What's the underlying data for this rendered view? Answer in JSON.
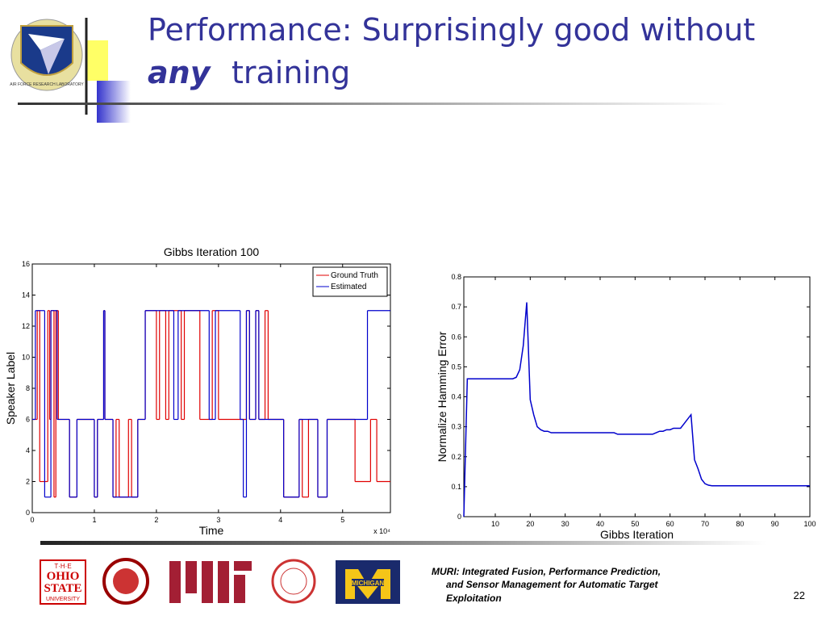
{
  "slide": {
    "title_line1": "Performance: Surprisingly good without",
    "title_emph": "any",
    "title_rest": "training"
  },
  "seal": {
    "text": "AIR FORCE RESEARCH LABORATORY"
  },
  "chart_data": [
    {
      "type": "line",
      "step": true,
      "title": "Gibbs Iteration 100",
      "xlabel": "Time",
      "ylabel": "Speaker Label",
      "x_multiplier": "x 10⁴",
      "xlim": [
        0,
        5.77
      ],
      "xticks": [
        0,
        1,
        2,
        3,
        4,
        5
      ],
      "ylim": [
        0,
        16
      ],
      "yticks": [
        0,
        2,
        4,
        6,
        8,
        10,
        12,
        14,
        16
      ],
      "legend": "upper right",
      "series": [
        {
          "name": "Ground Truth",
          "color": "#e00000",
          "x": [
            0,
            0.08,
            0.12,
            0.25,
            0.28,
            0.3,
            0.35,
            0.38,
            0.42,
            0.6,
            0.72,
            1.0,
            1.05,
            1.15,
            1.17,
            1.3,
            1.35,
            1.4,
            1.55,
            1.6,
            1.7,
            1.82,
            2.0,
            2.05,
            2.15,
            2.2,
            2.4,
            2.45,
            2.7,
            2.9,
            3.0,
            3.45,
            3.5,
            3.6,
            3.65,
            3.75,
            3.8,
            4.05,
            4.3,
            4.35,
            4.45,
            4.6,
            4.75,
            5.2,
            5.45,
            5.55
          ],
          "values": [
            6,
            13,
            2,
            13,
            6,
            13,
            1,
            13,
            6,
            1,
            6,
            1,
            6,
            13,
            6,
            1,
            6,
            1,
            6,
            1,
            6,
            13,
            6,
            13,
            6,
            13,
            6,
            13,
            6,
            13,
            6,
            13,
            6,
            13,
            6,
            13,
            6,
            1,
            6,
            1,
            6,
            1,
            6,
            2,
            6,
            2
          ]
        },
        {
          "name": "Estimated",
          "color": "#0000cc",
          "x": [
            0,
            0.05,
            0.2,
            0.3,
            0.4,
            0.6,
            0.72,
            1.0,
            1.05,
            1.15,
            1.17,
            1.3,
            1.7,
            1.82,
            2.28,
            2.35,
            2.85,
            2.95,
            3.35,
            3.4,
            3.45,
            3.5,
            3.6,
            3.65,
            4.05,
            4.3,
            4.6,
            4.75,
            5.4
          ],
          "values": [
            6,
            13,
            1,
            13,
            6,
            1,
            6,
            1,
            6,
            13,
            6,
            1,
            6,
            13,
            6,
            13,
            6,
            13,
            6,
            1,
            13,
            6,
            13,
            6,
            1,
            6,
            1,
            6,
            13
          ]
        }
      ]
    },
    {
      "type": "line",
      "xlabel": "Gibbs Iteration",
      "ylabel": "Normalize Hamming Error",
      "xlim": [
        1,
        100
      ],
      "xticks": [
        10,
        20,
        30,
        40,
        50,
        60,
        70,
        80,
        90,
        100
      ],
      "ylim": [
        0,
        0.8
      ],
      "yticks": [
        0,
        0.1,
        0.2,
        0.3,
        0.4,
        0.5,
        0.6,
        0.7,
        0.8
      ],
      "x": [
        1,
        2,
        3,
        4,
        5,
        6,
        7,
        8,
        9,
        10,
        11,
        12,
        13,
        14,
        15,
        16,
        17,
        18,
        19,
        20,
        21,
        22,
        23,
        24,
        25,
        26,
        27,
        28,
        29,
        30,
        31,
        32,
        33,
        34,
        35,
        36,
        37,
        38,
        39,
        40,
        41,
        42,
        43,
        44,
        45,
        46,
        47,
        48,
        49,
        50,
        51,
        52,
        53,
        54,
        55,
        56,
        57,
        58,
        59,
        60,
        61,
        62,
        63,
        64,
        65,
        66,
        67,
        68,
        69,
        70,
        71,
        72,
        73,
        74,
        75,
        76,
        77,
        78,
        79,
        80,
        81,
        82,
        83,
        84,
        85,
        86,
        87,
        88,
        89,
        90,
        91,
        92,
        93,
        94,
        95,
        96,
        97,
        98,
        99,
        100
      ],
      "series": [
        {
          "color": "#0000cc",
          "values": [
            0,
            0.46,
            0.46,
            0.46,
            0.46,
            0.46,
            0.46,
            0.46,
            0.46,
            0.46,
            0.46,
            0.46,
            0.46,
            0.46,
            0.46,
            0.465,
            0.49,
            0.57,
            0.715,
            0.39,
            0.34,
            0.3,
            0.29,
            0.285,
            0.285,
            0.28,
            0.28,
            0.28,
            0.28,
            0.28,
            0.28,
            0.28,
            0.28,
            0.28,
            0.28,
            0.28,
            0.28,
            0.28,
            0.28,
            0.28,
            0.28,
            0.28,
            0.28,
            0.28,
            0.275,
            0.275,
            0.275,
            0.275,
            0.275,
            0.275,
            0.275,
            0.275,
            0.275,
            0.275,
            0.275,
            0.28,
            0.285,
            0.285,
            0.29,
            0.29,
            0.295,
            0.295,
            0.295,
            0.31,
            0.325,
            0.34,
            0.19,
            0.16,
            0.125,
            0.11,
            0.105,
            0.103,
            0.103,
            0.103,
            0.103,
            0.103,
            0.103,
            0.103,
            0.103,
            0.103,
            0.103,
            0.103,
            0.103,
            0.103,
            0.103,
            0.103,
            0.103,
            0.103,
            0.103,
            0.103,
            0.103,
            0.103,
            0.103,
            0.103,
            0.103,
            0.103,
            0.103,
            0.103,
            0.103,
            0.103
          ]
        }
      ]
    }
  ],
  "logos": {
    "osu_top": "T·H·E",
    "osu_ohio": "OHIO",
    "osu_state": "STATE",
    "osu_univ": "UNIVERSITY",
    "michigan": "MICHIGAN"
  },
  "footer": {
    "line1": "MURI: Integrated Fusion, Performance Prediction,",
    "line2": "and Sensor Management for Automatic Target",
    "line3": "Exploitation",
    "page": "22"
  }
}
